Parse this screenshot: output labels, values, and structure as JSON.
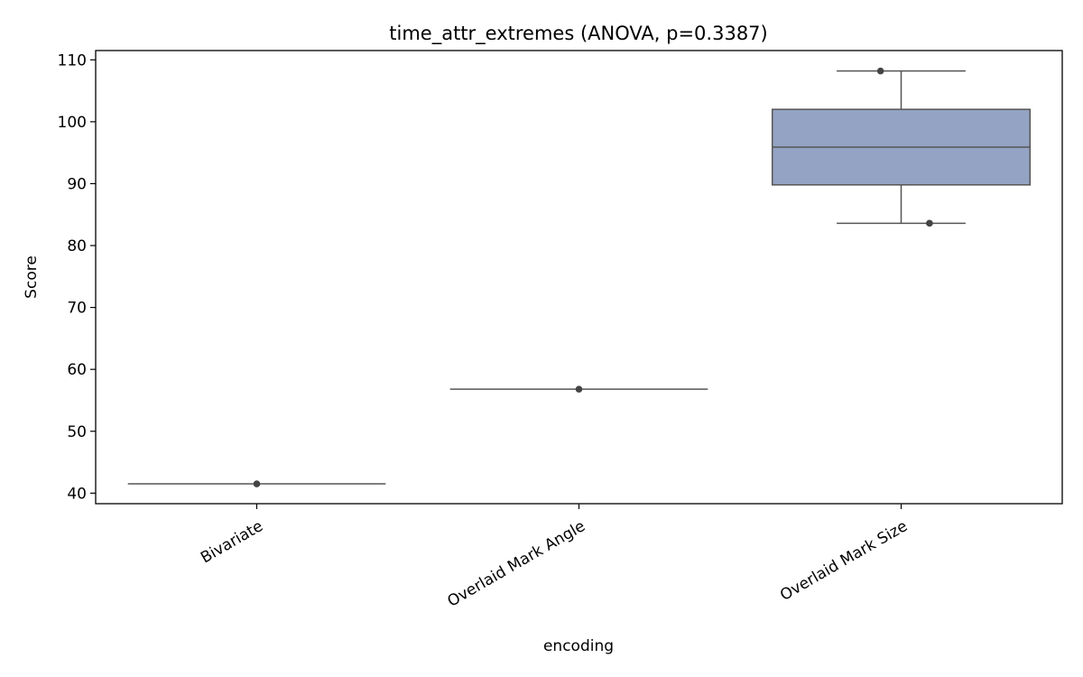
{
  "chart_data": {
    "type": "box",
    "title": "time_attr_extremes (ANOVA, p=0.3387)",
    "xlabel": "encoding",
    "ylabel": "Score",
    "ylim": [
      38.3,
      111.5
    ],
    "yticks": [
      40,
      50,
      60,
      70,
      80,
      90,
      100,
      110
    ],
    "grid": false,
    "categories": [
      "Bivariate",
      "Overlaid Mark Angle",
      "Overlaid Mark Size"
    ],
    "boxes": [
      {
        "category": "Bivariate",
        "q1": 41.5,
        "median": 41.5,
        "q3": 41.5,
        "whisker_low": 41.5,
        "whisker_high": 41.5,
        "points": [
          41.5
        ]
      },
      {
        "category": "Overlaid Mark Angle",
        "q1": 56.8,
        "median": 56.8,
        "q3": 56.8,
        "whisker_low": 56.8,
        "whisker_high": 56.8,
        "points": [
          56.8
        ]
      },
      {
        "category": "Overlaid Mark Size",
        "q1": 89.8,
        "median": 95.9,
        "q3": 102.0,
        "whisker_low": 83.6,
        "whisker_high": 108.2,
        "points": [
          108.2,
          83.6
        ]
      }
    ],
    "colors": {
      "box_fill": "#94a3c3",
      "box_line": "#555555",
      "point": "#444444",
      "axis": "#000000"
    }
  }
}
